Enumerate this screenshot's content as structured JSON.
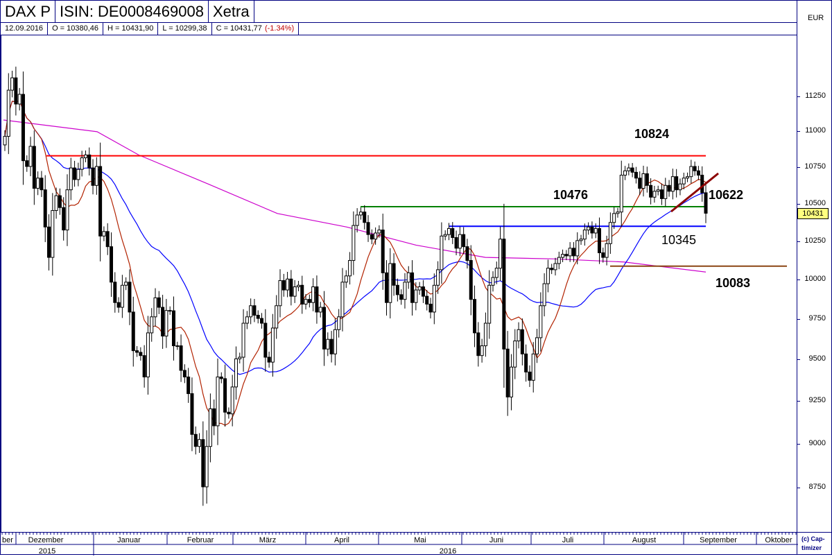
{
  "header": {
    "symbol": "DAX P",
    "isin": "ISIN: DE0008469008",
    "exchange": "Xetra",
    "date": "12.09.2016",
    "open": "O = 10380,46",
    "high": "H = 10431,90",
    "low": "L = 10299,38",
    "close": "C = 10431,77",
    "change": "(-1.34%)"
  },
  "axis": {
    "currency": "EUR",
    "last_price": "10431",
    "copyright": "(c) Cap-timizer"
  },
  "chart_data": {
    "type": "candlestick",
    "y_scale": "log",
    "ylim": [
      8500,
      11500
    ],
    "yticks": [
      8750,
      9000,
      9250,
      9500,
      9750,
      10000,
      10250,
      10500,
      10750,
      11000,
      11250
    ],
    "months": [
      "ber",
      "Dezember",
      "Januar",
      "Februar",
      "März",
      "April",
      "Mai",
      "Juni",
      "Juli",
      "August",
      "September",
      "Oktober"
    ],
    "years": [
      "2015",
      "2016"
    ],
    "closes": [
      10960,
      11290,
      11380,
      11190,
      11260,
      10790,
      10750,
      10890,
      10600,
      10670,
      10590,
      10340,
      10140,
      10450,
      10550,
      10470,
      10320,
      10590,
      10740,
      10660,
      10730,
      10810,
      10830,
      10740,
      10620,
      10750,
      10280,
      10310,
      10210,
      9980,
      9850,
      9820,
      9960,
      9980,
      9790,
      9550,
      9540,
      9520,
      9390,
      9660,
      9760,
      9880,
      9820,
      9640,
      9800,
      9798,
      9580,
      9580,
      9430,
      9390,
      9290,
      9050,
      8980,
      9020,
      8750,
      8980,
      9200,
      9100,
      9390,
      9380,
      9180,
      9170,
      9330,
      9500,
      9510,
      9720,
      9760,
      9830,
      9770,
      9750,
      9720,
      9510,
      9480,
      9690,
      9830,
      9990,
      9930,
      10000,
      9890,
      9950,
      9960,
      9840,
      9870,
      9850,
      9950,
      9790,
      9820,
      9560,
      9620,
      9530,
      9680,
      9760,
      9980,
      10020,
      10120,
      10350,
      10420,
      10440,
      10370,
      10290,
      10260,
      10300,
      10320,
      10040,
      9850,
      10100,
      9960,
      9900,
      9870,
      9980,
      10040,
      9850,
      9930,
      9950,
      9890,
      9840,
      9790,
      9960,
      10060,
      10280,
      10290,
      10330,
      10270,
      10200,
      10290,
      10210,
      10120,
      9870,
      9660,
      9520,
      9580,
      9720,
      9960,
      10010,
      10070,
      10260,
      9560,
      9270,
      9450,
      9610,
      9680,
      9530,
      9420,
      9370,
      9530,
      9630,
      9830,
      9970,
      10070,
      10060,
      10100,
      10140,
      10160,
      10150,
      10200,
      10150,
      10250,
      10260,
      10320,
      10340,
      10300,
      10330,
      10170,
      10140,
      10230,
      10370,
      10430,
      10440,
      10690,
      10720,
      10740,
      10710,
      10670,
      10600,
      10700,
      10620,
      10540,
      10580,
      10590,
      10530,
      10620,
      10580,
      10680,
      10590,
      10630,
      10670,
      10680,
      10750,
      10720,
      10690,
      10570,
      10431.77
    ],
    "long_ma_samples": [
      11076,
      10993,
      10830,
      10630,
      10430,
      10340,
      10220,
      10140,
      10130,
      10110,
      10045
    ],
    "levels": [
      {
        "value": 10824,
        "label": "10824",
        "color": "#ff0000"
      },
      {
        "value": 10476,
        "label": "10476",
        "color": "#008000"
      },
      {
        "value": 10345,
        "label": "10345",
        "color": "#0000ff"
      },
      {
        "value": 10083,
        "label": "10083",
        "color": "#8b4513"
      }
    ],
    "trendline_label": "10622",
    "colors": {
      "short_ma": "#b22200",
      "mid_ma": "#0000ff",
      "long_ma": "#cc00cc",
      "trendline": "#8b0000"
    }
  }
}
